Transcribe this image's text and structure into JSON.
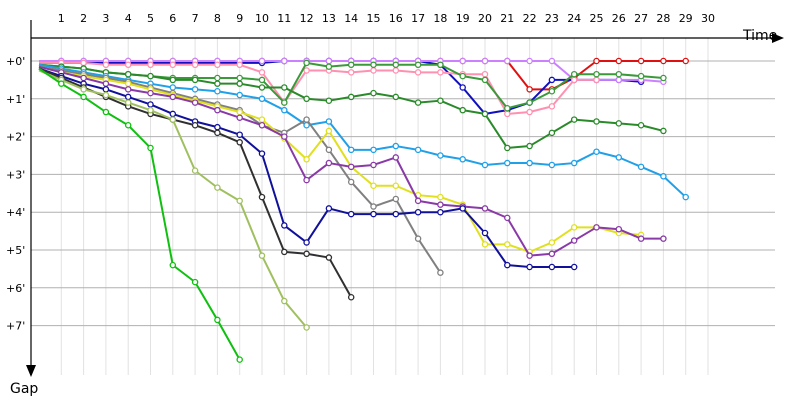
{
  "chart_data": {
    "type": "line",
    "title": "",
    "xlabel": "Time",
    "ylabel": "Gap",
    "x_tick_labels": [
      "1",
      "2",
      "3",
      "4",
      "5",
      "6",
      "7",
      "8",
      "9",
      "10",
      "11",
      "12",
      "13",
      "14",
      "15",
      "16",
      "17",
      "18",
      "19",
      "20",
      "21",
      "22",
      "23",
      "24",
      "25",
      "26",
      "27",
      "28",
      "29",
      "30"
    ],
    "y_tick_labels": [
      "+0'",
      "+1'",
      "+2'",
      "+3'",
      "+4'",
      "+5'",
      "+6'",
      "+7'"
    ],
    "x_range": [
      0,
      31
    ],
    "y_range_minutes": [
      0,
      8.3
    ],
    "y_unit": "minutes behind leader",
    "grid": true,
    "series": [
      {
        "color": "#e01010",
        "values": [
          0.0,
          0.0,
          0.0,
          0.0,
          0.0,
          0.0,
          0.0,
          0.0,
          0.0,
          0.0,
          0.0,
          0.0,
          0.0,
          0.0,
          0.0,
          0.0,
          0.0,
          0.0,
          0.0,
          0.0,
          0.0,
          0.0,
          0.75,
          0.75,
          0.45,
          0.0,
          0.0,
          0.0,
          0.0,
          0.0
        ]
      },
      {
        "color": "#e8d020",
        "values": [
          0.0,
          0.0,
          0.0,
          0.0,
          0.0,
          0.0,
          0.0,
          0.0,
          0.0,
          0.0,
          0.0,
          0.0
        ]
      },
      {
        "color": "#1010c0",
        "values": [
          0.05,
          0.05,
          0.05,
          0.05,
          0.05,
          0.05,
          0.05,
          0.05,
          0.05,
          0.05,
          0.05,
          0.0,
          0.0,
          0.0,
          0.0,
          0.0,
          0.0,
          0.0,
          0.1,
          0.7,
          1.4,
          1.3,
          1.1,
          0.5,
          0.5,
          0.5,
          0.5,
          0.55
        ]
      },
      {
        "color": "#cc80ff",
        "values": [
          0.0,
          0.0,
          0.0,
          0.0,
          0.0,
          0.0,
          0.0,
          0.0,
          0.0,
          0.0,
          0.0,
          0.0,
          0.0,
          0.0,
          0.0,
          0.0,
          0.0,
          0.0,
          0.0,
          0.0,
          0.0,
          0.0,
          0.0,
          0.0,
          0.5,
          0.5,
          0.5,
          0.5,
          0.55
        ]
      },
      {
        "color": "#ff90b0",
        "values": [
          0.05,
          0.05,
          0.05,
          0.1,
          0.1,
          0.1,
          0.1,
          0.1,
          0.1,
          0.1,
          0.3,
          1.1,
          0.25,
          0.25,
          0.3,
          0.25,
          0.25,
          0.3,
          0.3,
          0.35,
          0.35,
          1.4,
          1.35,
          1.2,
          0.5,
          0.5
        ]
      },
      {
        "color": "#3a9a3a",
        "values": [
          0.1,
          0.15,
          0.2,
          0.3,
          0.35,
          0.4,
          0.45,
          0.45,
          0.45,
          0.45,
          0.5,
          1.1,
          0.05,
          0.15,
          0.1,
          0.1,
          0.1,
          0.1,
          0.1,
          0.4,
          0.5,
          1.25,
          1.1,
          0.8,
          0.35,
          0.35,
          0.35,
          0.4,
          0.45
        ]
      },
      {
        "color": "#2a8a2a",
        "values": [
          0.1,
          0.15,
          0.2,
          0.3,
          0.35,
          0.4,
          0.5,
          0.5,
          0.6,
          0.6,
          0.7,
          0.7,
          1.0,
          1.05,
          0.95,
          0.85,
          0.95,
          1.1,
          1.05,
          1.3,
          1.4,
          2.3,
          2.25,
          1.9,
          1.55,
          1.6,
          1.65,
          1.7,
          1.85
        ]
      },
      {
        "color": "#20a0e8",
        "values": [
          0.1,
          0.2,
          0.3,
          0.4,
          0.5,
          0.6,
          0.7,
          0.75,
          0.8,
          0.9,
          1.0,
          1.3,
          1.7,
          1.6,
          2.35,
          2.35,
          2.25,
          2.35,
          2.5,
          2.6,
          2.75,
          2.7,
          2.7,
          2.75,
          2.7,
          2.4,
          2.55,
          2.8,
          3.05,
          3.6
        ]
      },
      {
        "color": "#808080",
        "values": [
          0.15,
          0.25,
          0.35,
          0.45,
          0.55,
          0.7,
          0.85,
          1.0,
          1.15,
          1.3,
          1.7,
          1.9,
          1.55,
          2.35,
          3.2,
          3.85,
          3.65,
          4.7,
          5.6
        ]
      },
      {
        "color": "#e0e020",
        "values": [
          0.15,
          0.3,
          0.4,
          0.5,
          0.6,
          0.75,
          0.9,
          1.05,
          1.2,
          1.35,
          1.55,
          2.05,
          2.6,
          1.85,
          2.8,
          3.3,
          3.3,
          3.55,
          3.6,
          3.8,
          4.85,
          4.85,
          5.05,
          4.8,
          4.4,
          4.4,
          4.55,
          4.6
        ]
      },
      {
        "color": "#8a3aa8",
        "values": [
          0.15,
          0.3,
          0.45,
          0.6,
          0.75,
          0.85,
          0.95,
          1.1,
          1.3,
          1.5,
          1.7,
          2.0,
          3.15,
          2.7,
          2.8,
          2.75,
          2.55,
          3.7,
          3.8,
          3.85,
          3.9,
          4.15,
          5.15,
          5.1,
          4.75,
          4.4,
          4.45,
          4.7,
          4.7
        ]
      },
      {
        "color": "#10109a",
        "values": [
          0.2,
          0.4,
          0.6,
          0.75,
          0.95,
          1.15,
          1.4,
          1.6,
          1.75,
          1.95,
          2.45,
          4.35,
          4.8,
          3.9,
          4.05,
          4.05,
          4.05,
          4.0,
          4.0,
          3.9,
          4.55,
          5.4,
          5.45,
          5.45,
          5.45
        ]
      },
      {
        "color": "#303030",
        "values": [
          0.2,
          0.45,
          0.7,
          0.95,
          1.2,
          1.4,
          1.55,
          1.7,
          1.9,
          2.15,
          3.6,
          5.05,
          5.1,
          5.2,
          6.25
        ]
      },
      {
        "color": "#a0c060",
        "values": [
          0.25,
          0.5,
          0.75,
          0.9,
          1.1,
          1.3,
          1.55,
          2.9,
          3.35,
          3.7,
          5.15,
          6.35,
          7.05
        ]
      },
      {
        "color": "#10c010",
        "values": [
          0.2,
          0.6,
          0.95,
          1.35,
          1.7,
          2.3,
          5.4,
          5.85,
          6.85,
          7.9
        ]
      }
    ]
  }
}
